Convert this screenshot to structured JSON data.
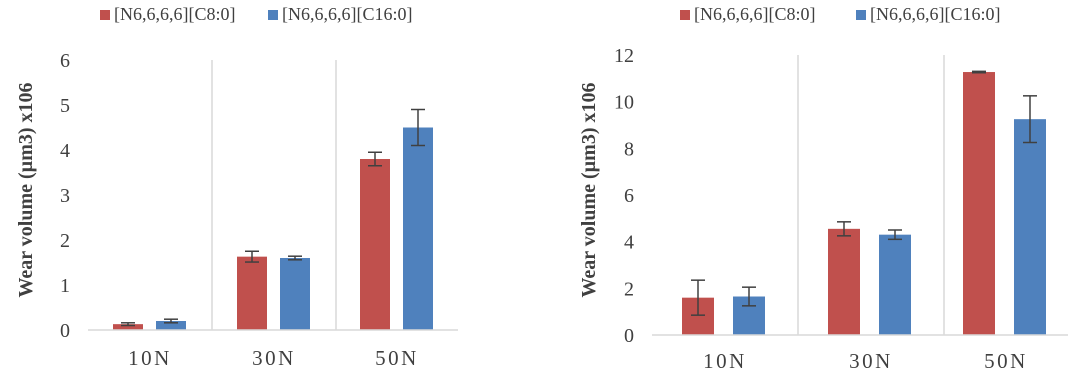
{
  "colors": {
    "series1": "#C0504D",
    "series2": "#4F81BD",
    "axis": "#D9D9D9",
    "text": "#404040",
    "error": "#404040"
  },
  "chart_data": [
    {
      "type": "bar",
      "title": "",
      "xlabel": "",
      "ylabel": "Wear volume (µm3) x106",
      "ylim": [
        0,
        6
      ],
      "yticks": [
        "0",
        "1",
        "2",
        "3",
        "4",
        "5",
        "6"
      ],
      "categories": [
        "10N",
        "30N",
        "50N"
      ],
      "legend_position": "top",
      "grid": "vertical category separators",
      "series": [
        {
          "name": "[N6,6,6,6][C8:0]",
          "values": [
            0.13,
            1.63,
            3.8
          ],
          "errors": [
            0.03,
            0.12,
            0.15
          ]
        },
        {
          "name": "[N6,6,6,6][C16:0]",
          "values": [
            0.2,
            1.6,
            4.5
          ],
          "errors": [
            0.04,
            0.04,
            0.4
          ]
        }
      ]
    },
    {
      "type": "bar",
      "title": "",
      "xlabel": "",
      "ylabel": "Wear volume (µm3) x106",
      "ylim": [
        0,
        12
      ],
      "yticks": [
        "0",
        "2",
        "4",
        "6",
        "8",
        "10",
        "12"
      ],
      "categories": [
        "10N",
        "30N",
        "50N"
      ],
      "legend_position": "top",
      "grid": "vertical category separators",
      "series": [
        {
          "name": "[N6,6,6,6][C8:0]",
          "values": [
            1.6,
            4.55,
            11.27
          ],
          "errors": [
            0.75,
            0.3,
            0.03
          ]
        },
        {
          "name": "[N6,6,6,6][C16:0]",
          "values": [
            1.65,
            4.3,
            9.25
          ],
          "errors": [
            0.4,
            0.2,
            1.0
          ]
        }
      ]
    }
  ]
}
